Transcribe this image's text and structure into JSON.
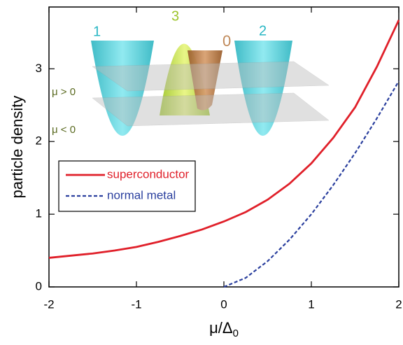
{
  "chart_data": {
    "type": "line",
    "y_label": "particle density",
    "x_label": {
      "text": "μ/Δ",
      "subscript": "0"
    },
    "x": [
      -2,
      -1.75,
      -1.5,
      -1.25,
      -1,
      -0.75,
      -0.5,
      -0.25,
      0,
      0.25,
      0.5,
      0.75,
      1,
      1.25,
      1.5,
      1.75,
      2
    ],
    "series": [
      {
        "name": "superconductor",
        "color": "#e0202a",
        "dash": false,
        "values": [
          0.4,
          0.43,
          0.46,
          0.5,
          0.55,
          0.62,
          0.7,
          0.79,
          0.9,
          1.03,
          1.2,
          1.42,
          1.7,
          2.05,
          2.47,
          3.03,
          3.67
        ]
      },
      {
        "name": "normal metal",
        "color": "#2a3f9e",
        "dash": true,
        "values": [
          null,
          null,
          null,
          null,
          null,
          null,
          null,
          null,
          0,
          0.125,
          0.354,
          0.65,
          1.0,
          1.4,
          1.84,
          2.32,
          2.83
        ]
      }
    ],
    "xlim": [
      -2,
      2
    ],
    "ylim": [
      0,
      3.85
    ],
    "xticks": [
      -2,
      -1,
      0,
      1,
      2
    ],
    "yticks": [
      0,
      1,
      2,
      3
    ],
    "annotations": [
      {
        "text": "1",
        "color": "#2ab7c4"
      },
      {
        "text": "3",
        "color": "#9cc42a"
      },
      {
        "text": "0",
        "color": "#c08a5a"
      },
      {
        "text": "2",
        "color": "#2ab7c4"
      },
      {
        "text": "μ > 0",
        "color": "#5a6a20"
      },
      {
        "text": "μ < 0",
        "color": "#5a6a20"
      }
    ]
  }
}
